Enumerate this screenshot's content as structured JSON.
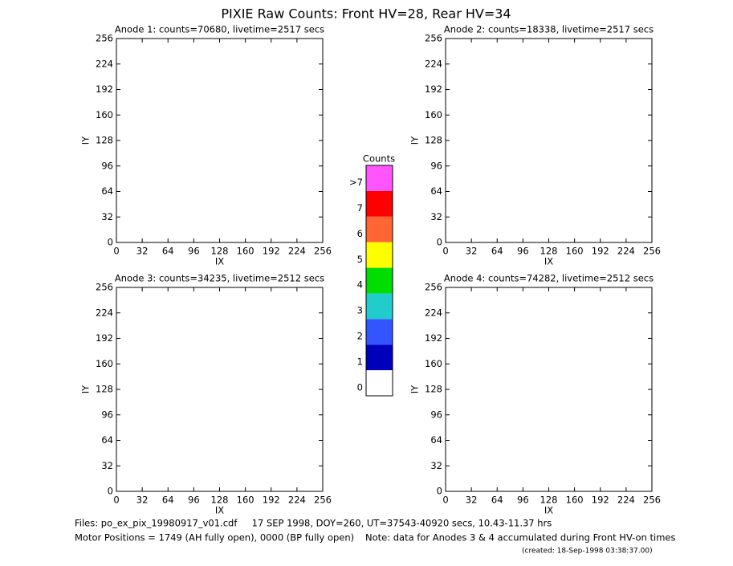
{
  "title": "PIXIE Raw Counts:  Front HV=28, Rear HV=34",
  "chart_data": [
    {
      "type": "heatmap",
      "title": "Anode 1: counts=70680, livetime=2517 secs",
      "x_label": "IX",
      "y_label": "IY",
      "xlim": [
        0,
        256
      ],
      "ylim": [
        0,
        256
      ],
      "xticks": [
        0,
        32,
        64,
        96,
        128,
        160,
        192,
        224,
        256
      ],
      "yticks": [
        0,
        32,
        64,
        96,
        128,
        160,
        192,
        224,
        256
      ]
    },
    {
      "type": "heatmap",
      "title": "Anode 2: counts=18338, livetime=2517 secs",
      "x_label": "IX",
      "y_label": "IY",
      "xlim": [
        0,
        256
      ],
      "ylim": [
        0,
        256
      ],
      "xticks": [
        0,
        32,
        64,
        96,
        128,
        160,
        192,
        224,
        256
      ],
      "yticks": [
        0,
        32,
        64,
        96,
        128,
        160,
        192,
        224,
        256
      ]
    },
    {
      "type": "heatmap",
      "title": "Anode 3: counts=34235, livetime=2512 secs",
      "x_label": "IX",
      "y_label": "IY",
      "xlim": [
        0,
        256
      ],
      "ylim": [
        0,
        256
      ],
      "xticks": [
        0,
        32,
        64,
        96,
        128,
        160,
        192,
        224,
        256
      ],
      "yticks": [
        0,
        32,
        64,
        96,
        128,
        160,
        192,
        224,
        256
      ]
    },
    {
      "type": "heatmap",
      "title": "Anode 4: counts=74282, livetime=2512 secs",
      "x_label": "IX",
      "y_label": "IY",
      "xlim": [
        0,
        256
      ],
      "ylim": [
        0,
        256
      ],
      "xticks": [
        0,
        32,
        64,
        96,
        128,
        160,
        192,
        224,
        256
      ],
      "yticks": [
        0,
        32,
        64,
        96,
        128,
        160,
        192,
        224,
        256
      ]
    }
  ],
  "colorbar": {
    "title": "Counts",
    "labels": [
      "0",
      "1",
      "2",
      "3",
      "4",
      "5",
      "6",
      "7",
      ">7"
    ],
    "colors": [
      "#ffffff",
      "#0000bb",
      "#3355ff",
      "#22cccc",
      "#00dd00",
      "#ffff00",
      "#ff6633",
      "#ff0000",
      "#ff55ff"
    ]
  },
  "footer": {
    "files": "Files: po_ex_pix_19980917_v01.cdf     17 SEP 1998, DOY=260, UT=37543-40920 secs, 10.43-11.37 hrs",
    "motor": "Motor Positions = 1749 (AH fully open), 0000 (BP fully open)",
    "note": "Note: data for Anodes 3 & 4 accumulated during Front HV-on times",
    "created": "(created: 18-Sep-1998 03:38:37.00)"
  }
}
